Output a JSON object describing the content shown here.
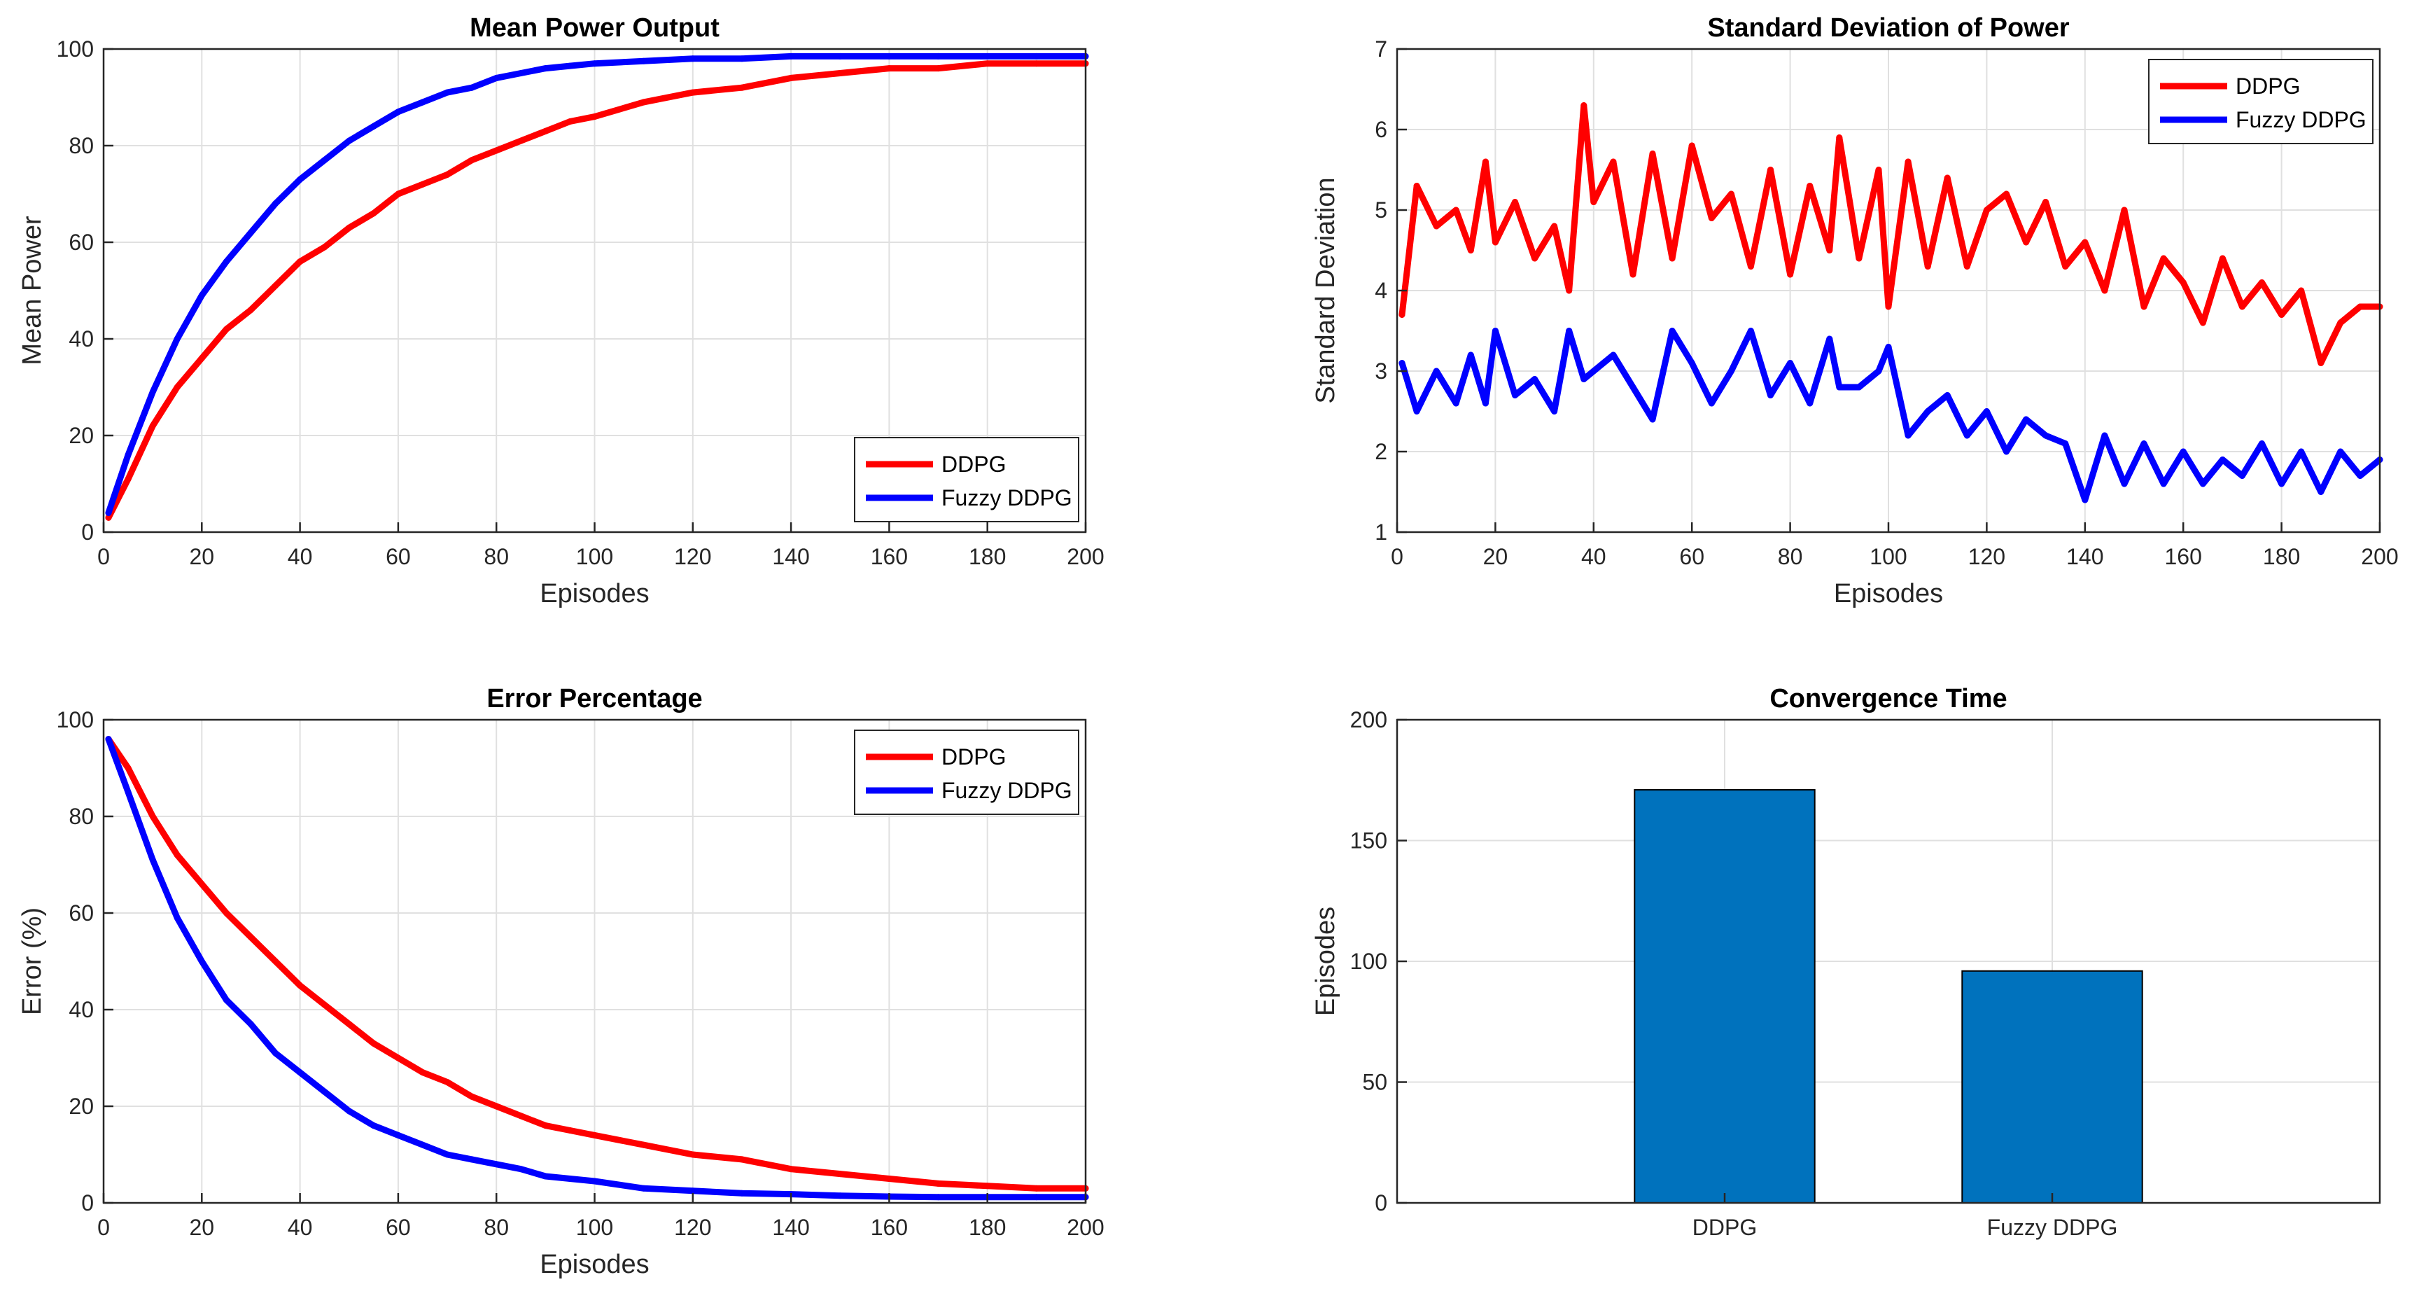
{
  "chart_data": [
    {
      "type": "line",
      "title": "Mean Power Output",
      "xlabel": "Episodes",
      "ylabel": "Mean Power",
      "xlim": [
        0,
        200
      ],
      "ylim": [
        0,
        100
      ],
      "xticks": [
        0,
        20,
        40,
        60,
        80,
        100,
        120,
        140,
        160,
        180,
        200
      ],
      "yticks": [
        0,
        20,
        40,
        60,
        80,
        100
      ],
      "grid": true,
      "legend_position": "bottom-right",
      "series": [
        {
          "name": "DDPG",
          "color": "#ff0000",
          "x": [
            1,
            5,
            10,
            15,
            20,
            25,
            30,
            35,
            40,
            45,
            50,
            55,
            60,
            65,
            70,
            75,
            80,
            85,
            90,
            95,
            100,
            110,
            120,
            130,
            140,
            150,
            160,
            170,
            180,
            190,
            200
          ],
          "y": [
            3,
            11,
            22,
            30,
            36,
            42,
            46,
            51,
            56,
            59,
            63,
            66,
            70,
            72,
            74,
            77,
            79,
            81,
            83,
            85,
            86,
            89,
            91,
            92,
            94,
            95,
            96,
            96,
            97,
            97,
            97
          ]
        },
        {
          "name": "Fuzzy DDPG",
          "color": "#0000ff",
          "x": [
            1,
            5,
            10,
            15,
            20,
            25,
            30,
            35,
            40,
            45,
            50,
            55,
            60,
            65,
            70,
            75,
            80,
            85,
            90,
            95,
            100,
            110,
            120,
            130,
            140,
            150,
            160,
            170,
            180,
            190,
            200
          ],
          "y": [
            4,
            16,
            29,
            40,
            49,
            56,
            62,
            68,
            73,
            77,
            81,
            84,
            87,
            89,
            91,
            92,
            94,
            95,
            96,
            96.5,
            97,
            97.5,
            98,
            98,
            98.5,
            98.5,
            98.5,
            98.5,
            98.5,
            98.5,
            98.5
          ]
        }
      ]
    },
    {
      "type": "line",
      "title": "Standard Deviation of Power",
      "xlabel": "Episodes",
      "ylabel": "Standard Deviation",
      "xlim": [
        0,
        200
      ],
      "ylim": [
        1,
        7
      ],
      "xticks": [
        0,
        20,
        40,
        60,
        80,
        100,
        120,
        140,
        160,
        180,
        200
      ],
      "yticks": [
        1,
        2,
        3,
        4,
        5,
        6,
        7
      ],
      "grid": true,
      "legend_position": "top-right",
      "series": [
        {
          "name": "DDPG",
          "color": "#ff0000",
          "x": [
            1,
            4,
            8,
            12,
            15,
            18,
            20,
            24,
            28,
            32,
            35,
            38,
            40,
            44,
            48,
            52,
            56,
            60,
            64,
            68,
            72,
            76,
            80,
            84,
            88,
            90,
            94,
            98,
            100,
            104,
            108,
            112,
            116,
            120,
            124,
            128,
            132,
            136,
            140,
            144,
            148,
            152,
            156,
            160,
            164,
            168,
            172,
            176,
            180,
            184,
            188,
            192,
            196,
            200
          ],
          "y": [
            3.7,
            5.3,
            4.8,
            5.0,
            4.5,
            5.6,
            4.6,
            5.1,
            4.4,
            4.8,
            4.0,
            6.3,
            5.1,
            5.6,
            4.2,
            5.7,
            4.4,
            5.8,
            4.9,
            5.2,
            4.3,
            5.5,
            4.2,
            5.3,
            4.5,
            5.9,
            4.4,
            5.5,
            3.8,
            5.6,
            4.3,
            5.4,
            4.3,
            5.0,
            5.2,
            4.6,
            5.1,
            4.3,
            4.6,
            4.0,
            5.0,
            3.8,
            4.4,
            4.1,
            3.6,
            4.4,
            3.8,
            4.1,
            3.7,
            4.0,
            3.1,
            3.6,
            3.8,
            3.8
          ]
        },
        {
          "name": "Fuzzy DDPG",
          "color": "#0000ff",
          "x": [
            1,
            4,
            8,
            12,
            15,
            18,
            20,
            24,
            28,
            32,
            35,
            38,
            40,
            44,
            48,
            52,
            56,
            60,
            64,
            68,
            72,
            76,
            80,
            84,
            88,
            90,
            94,
            98,
            100,
            104,
            108,
            112,
            116,
            120,
            124,
            128,
            132,
            136,
            140,
            144,
            148,
            152,
            156,
            160,
            164,
            168,
            172,
            176,
            180,
            184,
            188,
            192,
            196,
            200
          ],
          "y": [
            3.1,
            2.5,
            3.0,
            2.6,
            3.2,
            2.6,
            3.5,
            2.7,
            2.9,
            2.5,
            3.5,
            2.9,
            3.0,
            3.2,
            2.8,
            2.4,
            3.5,
            3.1,
            2.6,
            3.0,
            3.5,
            2.7,
            3.1,
            2.6,
            3.4,
            2.8,
            2.8,
            3.0,
            3.3,
            2.2,
            2.5,
            2.7,
            2.2,
            2.5,
            2.0,
            2.4,
            2.2,
            2.1,
            1.4,
            2.2,
            1.6,
            2.1,
            1.6,
            2.0,
            1.6,
            1.9,
            1.7,
            2.1,
            1.6,
            2.0,
            1.5,
            2.0,
            1.7,
            1.9
          ]
        }
      ]
    },
    {
      "type": "line",
      "title": "Error Percentage",
      "xlabel": "Episodes",
      "ylabel": "Error (%)",
      "xlim": [
        0,
        200
      ],
      "ylim": [
        0,
        100
      ],
      "xticks": [
        0,
        20,
        40,
        60,
        80,
        100,
        120,
        140,
        160,
        180,
        200
      ],
      "yticks": [
        0,
        20,
        40,
        60,
        80,
        100
      ],
      "grid": true,
      "legend_position": "top-right",
      "series": [
        {
          "name": "DDPG",
          "color": "#ff0000",
          "x": [
            1,
            5,
            10,
            15,
            20,
            25,
            30,
            35,
            40,
            45,
            50,
            55,
            60,
            65,
            70,
            75,
            80,
            85,
            90,
            95,
            100,
            110,
            120,
            130,
            140,
            150,
            160,
            170,
            180,
            190,
            200
          ],
          "y": [
            96,
            90,
            80,
            72,
            66,
            60,
            55,
            50,
            45,
            41,
            37,
            33,
            30,
            27,
            25,
            22,
            20,
            18,
            16,
            15,
            14,
            12,
            10,
            9,
            7,
            6,
            5,
            4,
            3.5,
            3,
            3
          ]
        },
        {
          "name": "Fuzzy DDPG",
          "color": "#0000ff",
          "x": [
            1,
            5,
            10,
            15,
            20,
            25,
            30,
            35,
            40,
            45,
            50,
            55,
            60,
            65,
            70,
            75,
            80,
            85,
            90,
            95,
            100,
            110,
            120,
            130,
            140,
            150,
            160,
            170,
            180,
            190,
            200
          ],
          "y": [
            96,
            85,
            71,
            59,
            50,
            42,
            37,
            31,
            27,
            23,
            19,
            16,
            14,
            12,
            10,
            9,
            8,
            7,
            5.5,
            5,
            4.5,
            3,
            2.5,
            2,
            1.8,
            1.5,
            1.3,
            1.2,
            1.2,
            1.2,
            1.2
          ]
        }
      ]
    },
    {
      "type": "bar",
      "title": "Convergence Time",
      "xlabel": "",
      "ylabel": "Episodes",
      "ylim": [
        0,
        200
      ],
      "yticks": [
        0,
        50,
        100,
        150,
        200
      ],
      "grid": true,
      "categories": [
        "DDPG",
        "Fuzzy DDPG"
      ],
      "values": [
        171,
        96
      ],
      "bar_color": "#0072bd"
    }
  ]
}
